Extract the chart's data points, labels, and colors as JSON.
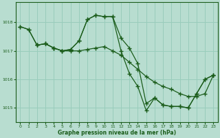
{
  "xlabel": "Graphe pression niveau de la mer (hPa)",
  "bg_color": "#b8ddd0",
  "grid_color": "#99ccbb",
  "line_color": "#1a5c1a",
  "xlim": [
    -0.5,
    23.5
  ],
  "ylim": [
    1014.5,
    1018.7
  ],
  "yticks": [
    1015,
    1016,
    1017,
    1018
  ],
  "xticks": [
    0,
    1,
    2,
    3,
    4,
    5,
    6,
    7,
    8,
    9,
    10,
    11,
    12,
    13,
    14,
    15,
    16,
    17,
    18,
    19,
    20,
    21,
    22,
    23
  ],
  "line1_x": [
    0,
    1,
    2,
    3,
    4,
    5,
    6,
    7,
    8,
    9,
    10,
    11,
    12,
    13,
    14,
    15,
    16,
    17,
    18,
    19,
    20,
    21,
    22,
    23
  ],
  "line1_y": [
    1017.85,
    1017.75,
    1017.2,
    1017.25,
    1017.1,
    1017.0,
    1017.0,
    1017.0,
    1017.05,
    1017.1,
    1017.15,
    1017.0,
    1016.85,
    1016.6,
    1016.35,
    1016.1,
    1015.9,
    1015.75,
    1015.65,
    1015.5,
    1015.4,
    1015.4,
    1015.5,
    1016.15
  ],
  "line2_x": [
    0,
    1,
    2,
    3,
    4,
    5,
    6,
    7,
    8,
    9,
    10,
    11,
    12,
    13,
    14,
    15,
    16,
    17,
    18,
    19,
    20,
    21,
    22,
    23
  ],
  "line2_y": [
    1017.85,
    1017.75,
    1017.2,
    1017.25,
    1017.1,
    1017.0,
    1017.05,
    1017.35,
    1018.1,
    1018.25,
    1018.2,
    1018.2,
    1017.45,
    1017.1,
    1016.55,
    1015.15,
    1015.35,
    1015.1,
    1015.05,
    1015.05,
    1015.0,
    1015.5,
    1016.0,
    1016.15
  ],
  "line3_x": [
    2,
    3,
    4,
    5,
    6,
    7,
    8,
    9,
    10,
    11,
    12,
    13,
    14,
    15,
    16,
    17,
    18,
    19,
    20,
    21,
    22,
    23
  ],
  "line3_y": [
    1017.2,
    1017.25,
    1017.1,
    1017.0,
    1017.05,
    1017.35,
    1018.1,
    1018.25,
    1018.2,
    1018.2,
    1017.0,
    1016.2,
    1015.75,
    1014.9,
    1015.35,
    1015.1,
    1015.05,
    1015.05,
    1015.0,
    1015.5,
    1016.0,
    1016.15
  ]
}
